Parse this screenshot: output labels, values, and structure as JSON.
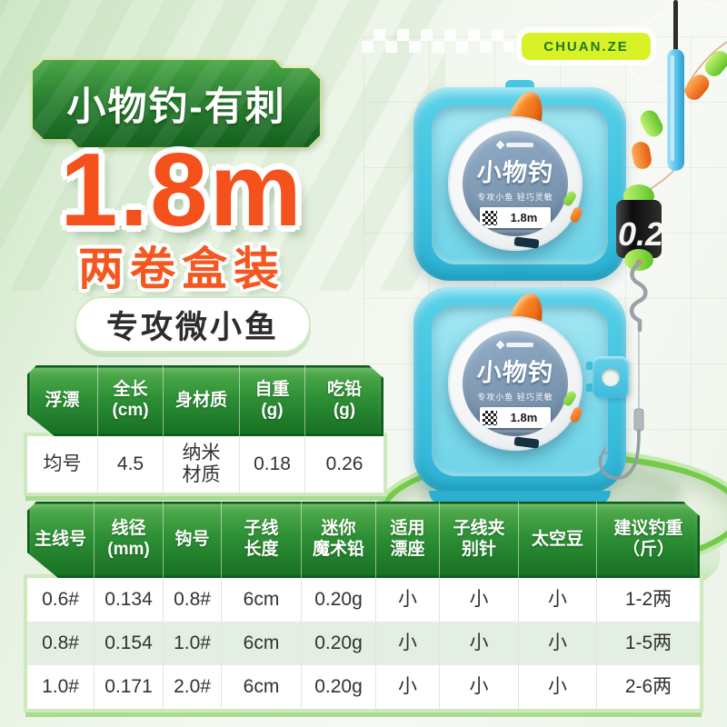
{
  "brand": {
    "badge": "CHUAN.ZE"
  },
  "banner": {
    "label": "小物钓-有刺"
  },
  "headline": {
    "length": "1.8m",
    "pack": "两卷盒装",
    "feature": "专攻微小鱼"
  },
  "spool": {
    "title": "小物钓",
    "subtitle": "专攻小鱼 轻巧灵敏",
    "length": "1.8m"
  },
  "rig": {
    "weight_label": "0.2"
  },
  "float_table": {
    "headers": [
      "浮漂",
      "全长\n(cm)",
      "身材质",
      "自重\n(g)",
      "吃铅\n(g)"
    ],
    "rows": [
      [
        "均号",
        "4.5",
        "纳米\n材质",
        "0.18",
        "0.26"
      ]
    ]
  },
  "line_table": {
    "headers": [
      "主线号",
      "线径\n(mm)",
      "钩号",
      "子线\n长度",
      "迷你\n魔术铅",
      "适用\n漂座",
      "子线夹\n别针",
      "太空豆",
      "建议钓重\n（斤）"
    ],
    "rows": [
      [
        "0.6#",
        "0.134",
        "0.8#",
        "6cm",
        "0.20g",
        "小",
        "小",
        "小",
        "1-2两"
      ],
      [
        "0.8#",
        "0.154",
        "1.0#",
        "6cm",
        "0.20g",
        "小",
        "小",
        "小",
        "1-5两"
      ],
      [
        "1.0#",
        "0.171",
        "2.0#",
        "6cm",
        "0.20g",
        "小",
        "小",
        "小",
        "2-6两"
      ]
    ]
  },
  "colors": {
    "accent_orange": "#f4511c",
    "banner_green": "#2a8031",
    "table_header_green": "#2e9036",
    "badge_lime": "#d9f228",
    "box_cyan": "#3ec3e0",
    "pedestal_green": "#74cb4b"
  }
}
